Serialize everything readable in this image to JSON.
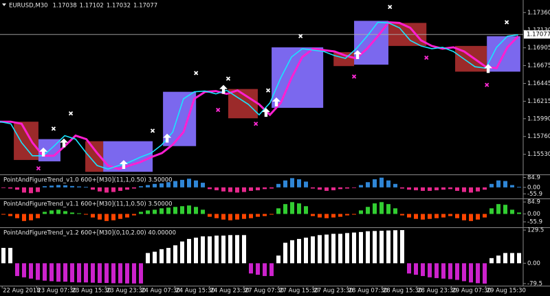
{
  "chart_data": [
    {
      "type": "line",
      "title": "EURUSD,M30",
      "ohlc": [
        1.17038,
        1.17102,
        1.17032,
        1.17077
      ],
      "xlim": [
        0,
        242
      ],
      "ylim": [
        1.15279,
        1.17522
      ],
      "yticks": [
        {
          "value": 1.1736,
          "label": "1.17360"
        },
        {
          "value": 1.1713,
          "label": "1.17130"
        },
        1.16905,
        1.16675,
        1.16445,
        1.16215,
        {
          "value": 1.1599,
          "label": "1.15990"
        },
        {
          "value": 1.1576,
          "label": "1.15760"
        },
        {
          "value": 1.1553,
          "label": "1.15530"
        }
      ],
      "x": [
        0,
        5,
        10,
        15,
        20,
        25,
        30,
        35,
        40,
        45,
        50,
        55,
        60,
        65,
        70,
        75,
        80,
        85,
        90,
        95,
        100,
        105,
        110,
        115,
        120,
        125,
        130,
        135,
        140,
        145,
        150,
        155,
        160,
        165,
        170,
        175,
        180,
        185,
        190,
        195,
        200,
        205,
        210,
        215,
        220,
        225,
        230,
        235,
        240
      ],
      "series": [
        {
          "color": "#ff1fd2",
          "values": [
            1.15951,
            1.15951,
            1.15924,
            1.15681,
            1.15511,
            1.15511,
            1.15636,
            1.15771,
            1.15726,
            1.15546,
            1.15385,
            1.1534,
            1.15385,
            1.1543,
            1.15493,
            1.15546,
            1.15654,
            1.15816,
            1.16247,
            1.16337,
            1.16346,
            1.1631,
            1.16355,
            1.16265,
            1.16175,
            1.1604,
            1.16193,
            1.16516,
            1.16786,
            1.16893,
            1.16875,
            1.16857,
            1.16804,
            1.16768,
            1.16893,
            1.17055,
            1.17235,
            1.17226,
            1.17163,
            1.17001,
            1.16929,
            1.16893,
            1.16911,
            1.16857,
            1.16759,
            1.1666,
            1.16642,
            1.16911,
            1.17055
          ]
        },
        {
          "color": "#19e6ff",
          "values": [
            1.15951,
            1.15924,
            1.15681,
            1.15511,
            1.15511,
            1.15636,
            1.15771,
            1.15726,
            1.15546,
            1.15385,
            1.1534,
            1.15385,
            1.1543,
            1.15493,
            1.15546,
            1.15654,
            1.15816,
            1.16247,
            1.16337,
            1.16346,
            1.1631,
            1.16355,
            1.16265,
            1.16175,
            1.1604,
            1.16193,
            1.16516,
            1.16786,
            1.16893,
            1.16875,
            1.16857,
            1.16804,
            1.16768,
            1.16893,
            1.17055,
            1.17235,
            1.17226,
            1.17163,
            1.17001,
            1.16929,
            1.16893,
            1.16911,
            1.16857,
            1.16759,
            1.1666,
            1.16642,
            1.16911,
            1.17055,
            1.17073
          ]
        }
      ],
      "boxes": [
        {
          "x": [
            6.4,
            17.8
          ],
          "y": [
            1.15457,
            1.15951
          ],
          "color": "#9b2a2a"
        },
        {
          "x": [
            17.8,
            28
          ],
          "y": [
            1.15439,
            1.15726
          ],
          "color": "#7b68ee"
        },
        {
          "x": [
            39.5,
            47.8
          ],
          "y": [
            1.15304,
            1.15699
          ],
          "color": "#9b2a2a"
        },
        {
          "x": [
            47.8,
            70.7
          ],
          "y": [
            1.15304,
            1.15699
          ],
          "color": "#7b68ee"
        },
        {
          "x": [
            75.5,
            90.8
          ],
          "y": [
            1.15636,
            1.16337
          ],
          "color": "#7b68ee"
        },
        {
          "x": [
            105.7,
            119.4
          ],
          "y": [
            1.15995,
            1.16373
          ],
          "color": "#9b2a2a"
        },
        {
          "x": [
            125.8,
            149.7
          ],
          "y": [
            1.1613,
            1.16911
          ],
          "color": "#7b68ee"
        },
        {
          "x": [
            154.5,
            164
          ],
          "y": [
            1.16669,
            1.16849
          ],
          "color": "#9b2a2a"
        },
        {
          "x": [
            164,
            179.9
          ],
          "y": [
            1.16687,
            1.17253
          ],
          "color": "#7b68ee"
        },
        {
          "x": [
            179.9,
            197.5
          ],
          "y": [
            1.16929,
            1.17226
          ],
          "color": "#9b2a2a"
        },
        {
          "x": [
            210.8,
            225.5
          ],
          "y": [
            1.16597,
            1.16929
          ],
          "color": "#9b2a2a"
        },
        {
          "x": [
            225.5,
            241
          ],
          "y": [
            1.16597,
            1.17055
          ],
          "color": "#7b68ee"
        }
      ],
      "arrows": {
        "color": "#ffffff",
        "x": [
          20.1,
          29.6,
          57.3,
          77.4,
          103.5,
          123.2,
          128,
          165.6,
          226.1
        ],
        "y": [
          1.15546,
          1.15663,
          1.15385,
          1.15726,
          1.16355,
          1.16058,
          1.16193,
          1.16804,
          1.16624
        ]
      },
      "crosses": [
        {
          "color": "#ffffff",
          "x": [
            24.8,
            32.8,
            70.7,
            90.8,
            105.7,
            124.2,
            139.2,
            180.6,
            234.7
          ],
          "y": [
            1.15861,
            1.16058,
            1.15834,
            1.16579,
            1.16507,
            1.16355,
            1.17055,
            1.17432,
            1.17235
          ]
        },
        {
          "color": "#ff2bd6",
          "x": [
            17.8,
            101,
            118.5,
            164,
            197.5,
            225.5
          ],
          "y": [
            1.15349,
            1.16103,
            1.15924,
            1.16534,
            1.16777,
            1.16426
          ]
        }
      ]
    },
    {
      "type": "bar",
      "title": "PointAndFigureTrend_v1.0 600+[M30](11,1,0.50) 3.50000",
      "xlim": [
        0,
        242
      ],
      "ylim": [
        -90,
        100
      ],
      "yticks": [
        84.9,
        {
          "value": 0,
          "label": "0.00"
        },
        -55.9
      ],
      "color": "#2f86d6",
      "negative_color": "#e6288c",
      "values": [
        -5,
        -10,
        -20,
        -45,
        -50,
        -40,
        10,
        15,
        20,
        18,
        12,
        8,
        5,
        -20,
        -35,
        -45,
        -40,
        -30,
        -20,
        -10,
        10,
        20,
        30,
        35,
        45,
        55,
        65,
        75,
        60,
        40,
        -15,
        -25,
        -35,
        -40,
        -45,
        -40,
        -30,
        -25,
        -15,
        -10,
        30,
        60,
        80,
        70,
        50,
        -10,
        -20,
        -30,
        -25,
        -15,
        -10,
        -5,
        20,
        45,
        70,
        84,
        60,
        30,
        -10,
        -20,
        -25,
        -30,
        -30,
        -25,
        -20,
        -15,
        -30,
        -40,
        -45,
        -35,
        -20,
        30,
        60,
        55,
        20,
        5
      ]
    },
    {
      "type": "bar",
      "title": "PointAndFigureTrend_v1.1 600+[M30](11,1,0.50) 3.50000",
      "xlim": [
        0,
        242
      ],
      "ylim": [
        -90,
        100
      ],
      "yticks": [
        84.9,
        {
          "value": 0,
          "label": "0.00"
        },
        -55.9
      ],
      "color": "#32cd32",
      "negative_color": "#ff4500",
      "values": [
        -5,
        -15,
        -30,
        -50,
        -45,
        -30,
        15,
        25,
        30,
        20,
        10,
        5,
        -5,
        -25,
        -40,
        -50,
        -45,
        -35,
        -25,
        -10,
        15,
        25,
        30,
        40,
        45,
        50,
        55,
        60,
        50,
        30,
        -20,
        -30,
        -40,
        -45,
        -40,
        -35,
        -30,
        -20,
        -15,
        -5,
        40,
        70,
        84,
        75,
        55,
        -15,
        -25,
        -30,
        -25,
        -20,
        -10,
        -5,
        25,
        50,
        75,
        84,
        70,
        40,
        -10,
        -25,
        -35,
        -40,
        -35,
        -30,
        -25,
        -15,
        -30,
        -45,
        -50,
        -40,
        -25,
        40,
        70,
        65,
        30,
        10
      ]
    },
    {
      "type": "bar",
      "title": "PointAndFigureTrend_v1.2 600+[M30](0,10,2.00) 40.00000",
      "xlim": [
        0,
        242
      ],
      "ylim": [
        -85,
        135
      ],
      "yticks": [
        129.5,
        {
          "value": 0,
          "label": "0.00"
        },
        -79.5
      ],
      "color": "#ffffff",
      "negative_color": "#cc22cc",
      "values": [
        60,
        60,
        -50,
        -55,
        -60,
        -65,
        -68,
        -70,
        -72,
        -72,
        -74,
        -75,
        -75,
        -76,
        -77,
        -77,
        -78,
        -78,
        -79,
        -79,
        -79,
        40,
        45,
        55,
        60,
        70,
        85,
        95,
        100,
        105,
        105,
        108,
        108,
        110,
        110,
        110,
        -40,
        -45,
        -50,
        -50,
        30,
        80,
        90,
        95,
        100,
        105,
        110,
        112,
        115,
        115,
        118,
        120,
        122,
        125,
        126,
        127,
        128,
        129,
        129.5,
        -40,
        -45,
        -50,
        -55,
        -58,
        -60,
        -62,
        -65,
        -70,
        -75,
        -78,
        -79.5,
        20,
        30,
        40,
        40,
        40
      ],
      "xticks": [
        {
          "value": 1,
          "label": "22 Aug 2018"
        },
        {
          "value": 17,
          "label": "23 Aug 07:30"
        },
        {
          "value": 33,
          "label": "23 Aug 15:30"
        },
        {
          "value": 49,
          "label": "23 Aug 23:30"
        },
        {
          "value": 65,
          "label": "24 Aug 07:30"
        },
        {
          "value": 81,
          "label": "24 Aug 15:30"
        },
        {
          "value": 97,
          "label": "24 Aug 23:30"
        },
        {
          "value": 113,
          "label": "27 Aug 07:30"
        },
        {
          "value": 129,
          "label": "27 Aug 15:30"
        },
        {
          "value": 145,
          "label": "27 Aug 23:30"
        },
        {
          "value": 161,
          "label": "28 Aug 07:30"
        },
        {
          "value": 177,
          "label": "28 Aug 15:30"
        },
        {
          "value": 193,
          "label": "28 Aug 23:30"
        },
        {
          "value": 209,
          "label": "29 Aug 07:30"
        },
        {
          "value": 225,
          "label": "29 Aug 15:30"
        }
      ]
    }
  ]
}
